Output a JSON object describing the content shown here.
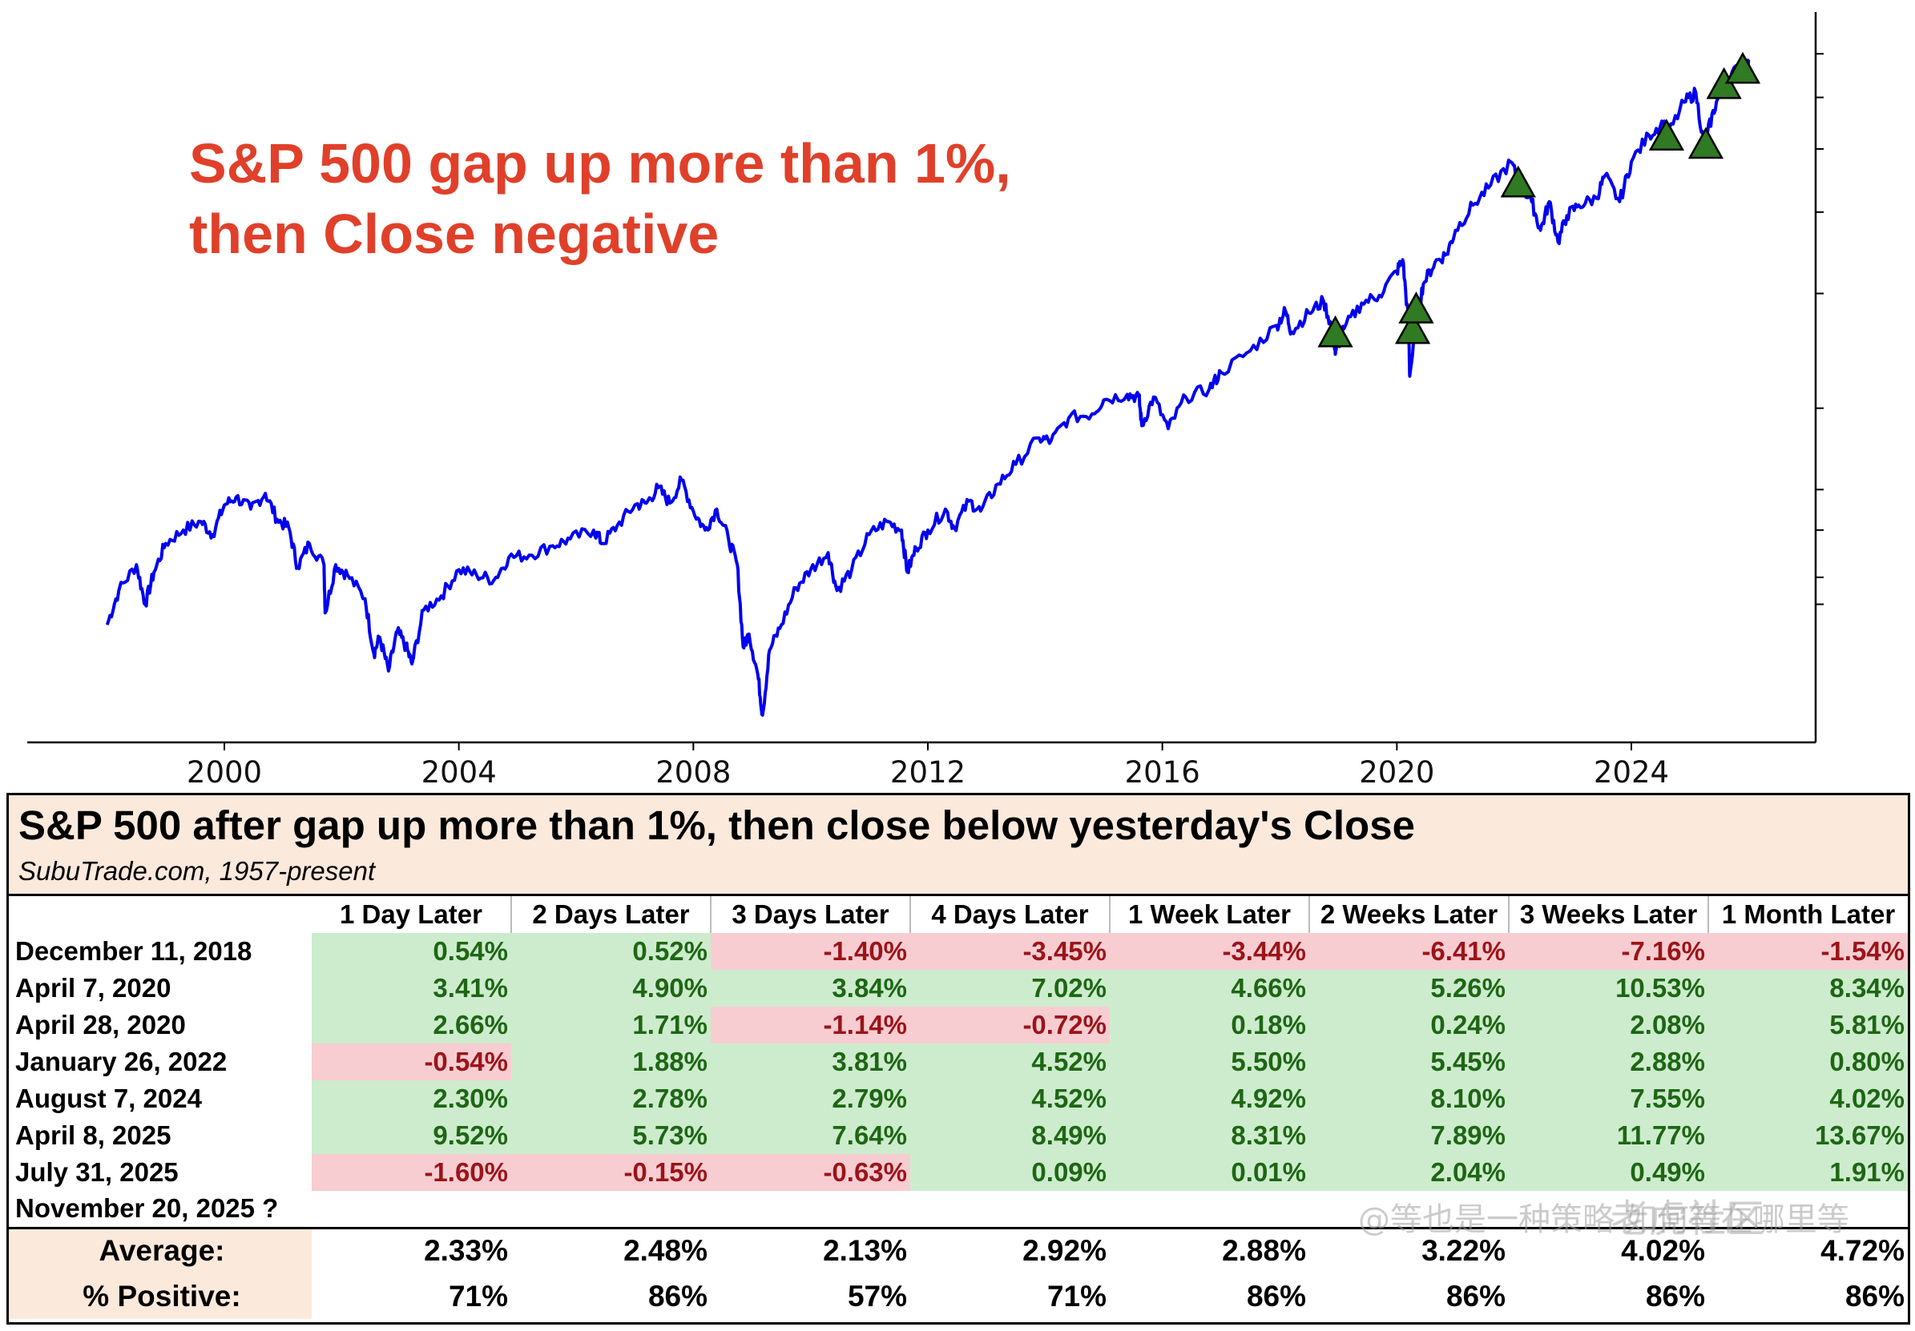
{
  "chart_data": {
    "type": "line",
    "title": "S&P 500 gap up more than 1%,\nthen Close negative",
    "title_lines": [
      "S&P 500 gap up more than 1%,",
      "then Close negative"
    ],
    "x_ticks": [
      "2000",
      "2004",
      "2008",
      "2012",
      "2016",
      "2020",
      "2024"
    ],
    "xlim": [
      1996.3,
      2027.0
    ],
    "ylim": [
      600,
      8000
    ],
    "yscale": "log",
    "series": [
      {
        "color": "#0000ee",
        "points": [
          [
            1998.0,
            930
          ],
          [
            1998.2,
            1050
          ],
          [
            1998.5,
            1150
          ],
          [
            1998.65,
            1000
          ],
          [
            1998.8,
            1120
          ],
          [
            1999.0,
            1240
          ],
          [
            1999.3,
            1300
          ],
          [
            1999.6,
            1340
          ],
          [
            1999.8,
            1280
          ],
          [
            2000.0,
            1420
          ],
          [
            2000.2,
            1460
          ],
          [
            2000.45,
            1400
          ],
          [
            2000.7,
            1480
          ],
          [
            2000.9,
            1350
          ],
          [
            2001.1,
            1310
          ],
          [
            2001.25,
            1140
          ],
          [
            2001.45,
            1240
          ],
          [
            2001.7,
            1150
          ],
          [
            2001.72,
            970
          ],
          [
            2001.9,
            1150
          ],
          [
            2002.1,
            1110
          ],
          [
            2002.4,
            1020
          ],
          [
            2002.55,
            840
          ],
          [
            2002.65,
            890
          ],
          [
            2002.8,
            790
          ],
          [
            2002.95,
            910
          ],
          [
            2003.1,
            860
          ],
          [
            2003.2,
            810
          ],
          [
            2003.4,
            980
          ],
          [
            2003.7,
            1030
          ],
          [
            2004.0,
            1130
          ],
          [
            2004.3,
            1110
          ],
          [
            2004.6,
            1090
          ],
          [
            2004.85,
            1180
          ],
          [
            2005.2,
            1190
          ],
          [
            2005.6,
            1230
          ],
          [
            2005.9,
            1260
          ],
          [
            2006.3,
            1300
          ],
          [
            2006.45,
            1240
          ],
          [
            2006.7,
            1320
          ],
          [
            2007.0,
            1420
          ],
          [
            2007.2,
            1430
          ],
          [
            2007.4,
            1510
          ],
          [
            2007.6,
            1430
          ],
          [
            2007.8,
            1550
          ],
          [
            2008.0,
            1390
          ],
          [
            2008.2,
            1300
          ],
          [
            2008.4,
            1400
          ],
          [
            2008.6,
            1260
          ],
          [
            2008.75,
            1150
          ],
          [
            2008.85,
            860
          ],
          [
            2008.95,
            900
          ],
          [
            2009.1,
            780
          ],
          [
            2009.18,
            676
          ],
          [
            2009.3,
            850
          ],
          [
            2009.5,
            930
          ],
          [
            2009.75,
            1060
          ],
          [
            2010.0,
            1130
          ],
          [
            2010.3,
            1200
          ],
          [
            2010.45,
            1050
          ],
          [
            2010.7,
            1130
          ],
          [
            2011.0,
            1280
          ],
          [
            2011.3,
            1340
          ],
          [
            2011.55,
            1300
          ],
          [
            2011.65,
            1120
          ],
          [
            2011.8,
            1220
          ],
          [
            2012.0,
            1300
          ],
          [
            2012.3,
            1400
          ],
          [
            2012.45,
            1310
          ],
          [
            2012.7,
            1440
          ],
          [
            2012.9,
            1390
          ],
          [
            2013.2,
            1530
          ],
          [
            2013.5,
            1640
          ],
          [
            2013.9,
            1800
          ],
          [
            2014.1,
            1780
          ],
          [
            2014.4,
            1930
          ],
          [
            2014.8,
            1960
          ],
          [
            2015.0,
            2060
          ],
          [
            2015.4,
            2100
          ],
          [
            2015.6,
            2080
          ],
          [
            2015.65,
            1880
          ],
          [
            2015.85,
            2080
          ],
          [
            2016.1,
            1860
          ],
          [
            2016.4,
            2080
          ],
          [
            2016.8,
            2140
          ],
          [
            2017.0,
            2270
          ],
          [
            2017.5,
            2450
          ],
          [
            2017.95,
            2680
          ],
          [
            2018.1,
            2820
          ],
          [
            2018.2,
            2620
          ],
          [
            2018.5,
            2800
          ],
          [
            2018.75,
            2920
          ],
          [
            2018.9,
            2640
          ],
          [
            2018.95,
            2420
          ],
          [
            2019.1,
            2650
          ],
          [
            2019.4,
            2900
          ],
          [
            2019.7,
            2980
          ],
          [
            2020.0,
            3250
          ],
          [
            2020.1,
            3380
          ],
          [
            2020.2,
            2700
          ],
          [
            2020.22,
            2240
          ],
          [
            2020.35,
            2780
          ],
          [
            2020.45,
            3100
          ],
          [
            2020.65,
            3350
          ],
          [
            2020.85,
            3450
          ],
          [
            2021.0,
            3750
          ],
          [
            2021.3,
            4100
          ],
          [
            2021.6,
            4400
          ],
          [
            2021.95,
            4770
          ],
          [
            2022.1,
            4400
          ],
          [
            2022.3,
            4150
          ],
          [
            2022.45,
            3750
          ],
          [
            2022.6,
            4150
          ],
          [
            2022.75,
            3600
          ],
          [
            2022.9,
            3950
          ],
          [
            2023.1,
            4100
          ],
          [
            2023.4,
            4200
          ],
          [
            2023.55,
            4550
          ],
          [
            2023.8,
            4150
          ],
          [
            2024.0,
            4780
          ],
          [
            2024.3,
            5250
          ],
          [
            2024.55,
            5500
          ],
          [
            2024.6,
            5200
          ],
          [
            2024.9,
            5900
          ],
          [
            2025.1,
            6100
          ],
          [
            2025.25,
            5000
          ],
          [
            2025.3,
            5300
          ],
          [
            2025.45,
            5900
          ],
          [
            2025.6,
            6250
          ],
          [
            2025.85,
            6750
          ],
          [
            2025.95,
            6600
          ],
          [
            2026.0,
            6850
          ]
        ]
      }
    ],
    "markers": {
      "shape": "triangle-up",
      "color": "#2f7a22",
      "points": [
        [
          2018.95,
          2620
        ],
        [
          2020.27,
          2650
        ],
        [
          2020.33,
          2850
        ],
        [
          2022.07,
          4450
        ],
        [
          2024.6,
          5250
        ],
        [
          2025.27,
          5100
        ],
        [
          2025.58,
          6300
        ],
        [
          2025.9,
          6650
        ]
      ]
    }
  },
  "table": {
    "title": "S&P 500 after gap up more than 1%, then close below yesterday's Close",
    "subtitle": "SubuTrade.com, 1957-present",
    "columns": [
      "1 Day Later",
      "2 Days Later",
      "3 Days Later",
      "4 Days Later",
      "1 Week Later",
      "2 Weeks Later",
      "3 Weeks Later",
      "1 Month Later"
    ],
    "rows": [
      {
        "date": "December 11, 2018",
        "values": [
          "0.54%",
          "0.52%",
          "-1.40%",
          "-3.45%",
          "-3.44%",
          "-6.41%",
          "-7.16%",
          "-1.54%"
        ]
      },
      {
        "date": "April 7, 2020",
        "values": [
          "3.41%",
          "4.90%",
          "3.84%",
          "7.02%",
          "4.66%",
          "5.26%",
          "10.53%",
          "8.34%"
        ]
      },
      {
        "date": "April 28, 2020",
        "values": [
          "2.66%",
          "1.71%",
          "-1.14%",
          "-0.72%",
          "0.18%",
          "0.24%",
          "2.08%",
          "5.81%"
        ]
      },
      {
        "date": "January 26, 2022",
        "values": [
          "-0.54%",
          "1.88%",
          "3.81%",
          "4.52%",
          "5.50%",
          "5.45%",
          "2.88%",
          "0.80%"
        ]
      },
      {
        "date": "August 7, 2024",
        "values": [
          "2.30%",
          "2.78%",
          "2.79%",
          "4.52%",
          "4.92%",
          "8.10%",
          "7.55%",
          "4.02%"
        ]
      },
      {
        "date": "April 8, 2025",
        "values": [
          "9.52%",
          "5.73%",
          "7.64%",
          "8.49%",
          "8.31%",
          "7.89%",
          "11.77%",
          "13.67%"
        ]
      },
      {
        "date": "July 31, 2025",
        "values": [
          "-1.60%",
          "-0.15%",
          "-0.63%",
          "0.09%",
          "0.01%",
          "2.04%",
          "0.49%",
          "1.91%"
        ]
      },
      {
        "date": "November 20, 2025 ?",
        "values": [
          "",
          "",
          "",
          "",
          "",
          "",
          "",
          ""
        ]
      }
    ],
    "summary": [
      {
        "label": "Average:",
        "values": [
          "2.33%",
          "2.48%",
          "2.13%",
          "2.92%",
          "2.88%",
          "3.22%",
          "4.02%",
          "4.72%"
        ]
      },
      {
        "label": "% Positive:",
        "values": [
          "71%",
          "86%",
          "57%",
          "71%",
          "86%",
          "86%",
          "86%",
          "86%"
        ]
      }
    ],
    "colors": {
      "positive_bg": "#cdeccd",
      "positive_text": "#1e6614",
      "negative_bg": "#f7cdd2",
      "negative_text": "#9b1418",
      "header_bg": "#fbe9dc"
    }
  },
  "watermark": {
    "text1": "@等也是一种策略 如何等在哪里等",
    "text2": "老虎社区"
  }
}
